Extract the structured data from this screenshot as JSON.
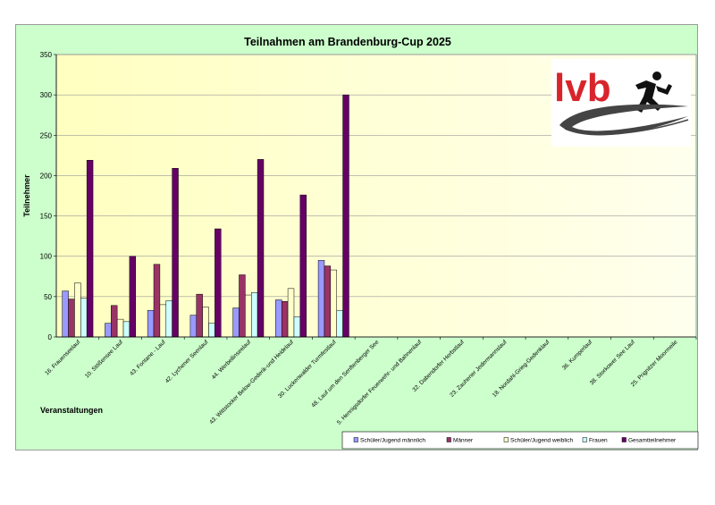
{
  "chart_data": {
    "type": "bar",
    "title": "Teilnahmen am Brandenburg-Cup 2025",
    "xlabel": "Veranstaltungen",
    "ylabel": "Teilnehmer",
    "ylim": [
      0,
      350
    ],
    "yticks": [
      0,
      50,
      100,
      150,
      200,
      250,
      300,
      350
    ],
    "grid": true,
    "legend_position": "bottom",
    "categories": [
      "16. Frauenseelauf",
      "10. Stößensee Lauf",
      "43. Fontane - Lauf",
      "42. Lychener Seenlauf",
      "44. Werbellinseelauf",
      "43. Wittstocker Below-Gederik-und Heidelauf",
      "30. Luckenwalder Turmfestlauf",
      "48. Lauf um den Senftenberger See",
      "5. Hennigsdorfer Feuerwehr- und Bahnenlauf",
      "32. Dabendorfer Herbstlauf",
      "23. Zauhener Jedermannslauf",
      "18. Nordahl-Grieg-Gedenklauf",
      "36. Kumperlauf",
      "38. Storkower See Lauf",
      "25. Prignitzer Moormeile"
    ],
    "series": [
      {
        "name": "Schüler/Jugend männlich",
        "color": "#9999ff",
        "values": [
          57,
          17,
          33,
          27,
          36,
          46,
          95,
          null,
          null,
          null,
          null,
          null,
          null,
          null,
          null
        ]
      },
      {
        "name": "Männer",
        "color": "#993366",
        "values": [
          47,
          39,
          90,
          53,
          77,
          44,
          88,
          null,
          null,
          null,
          null,
          null,
          null,
          null,
          null
        ]
      },
      {
        "name": "Schüler/Jugend weiblich",
        "color": "#ffffcc",
        "values": [
          67,
          22,
          40,
          37,
          52,
          60,
          83,
          null,
          null,
          null,
          null,
          null,
          null,
          null,
          null
        ]
      },
      {
        "name": "Frauen",
        "color": "#ccffff",
        "values": [
          48,
          19,
          45,
          17,
          55,
          25,
          33,
          null,
          null,
          null,
          null,
          null,
          null,
          null,
          null
        ]
      },
      {
        "name": "Gesamtteilnehmer",
        "color": "#660066",
        "values": [
          219,
          100,
          209,
          134,
          220,
          176,
          300,
          null,
          null,
          null,
          null,
          null,
          null,
          null,
          null
        ]
      }
    ]
  },
  "logo": {
    "text": "lvb"
  }
}
